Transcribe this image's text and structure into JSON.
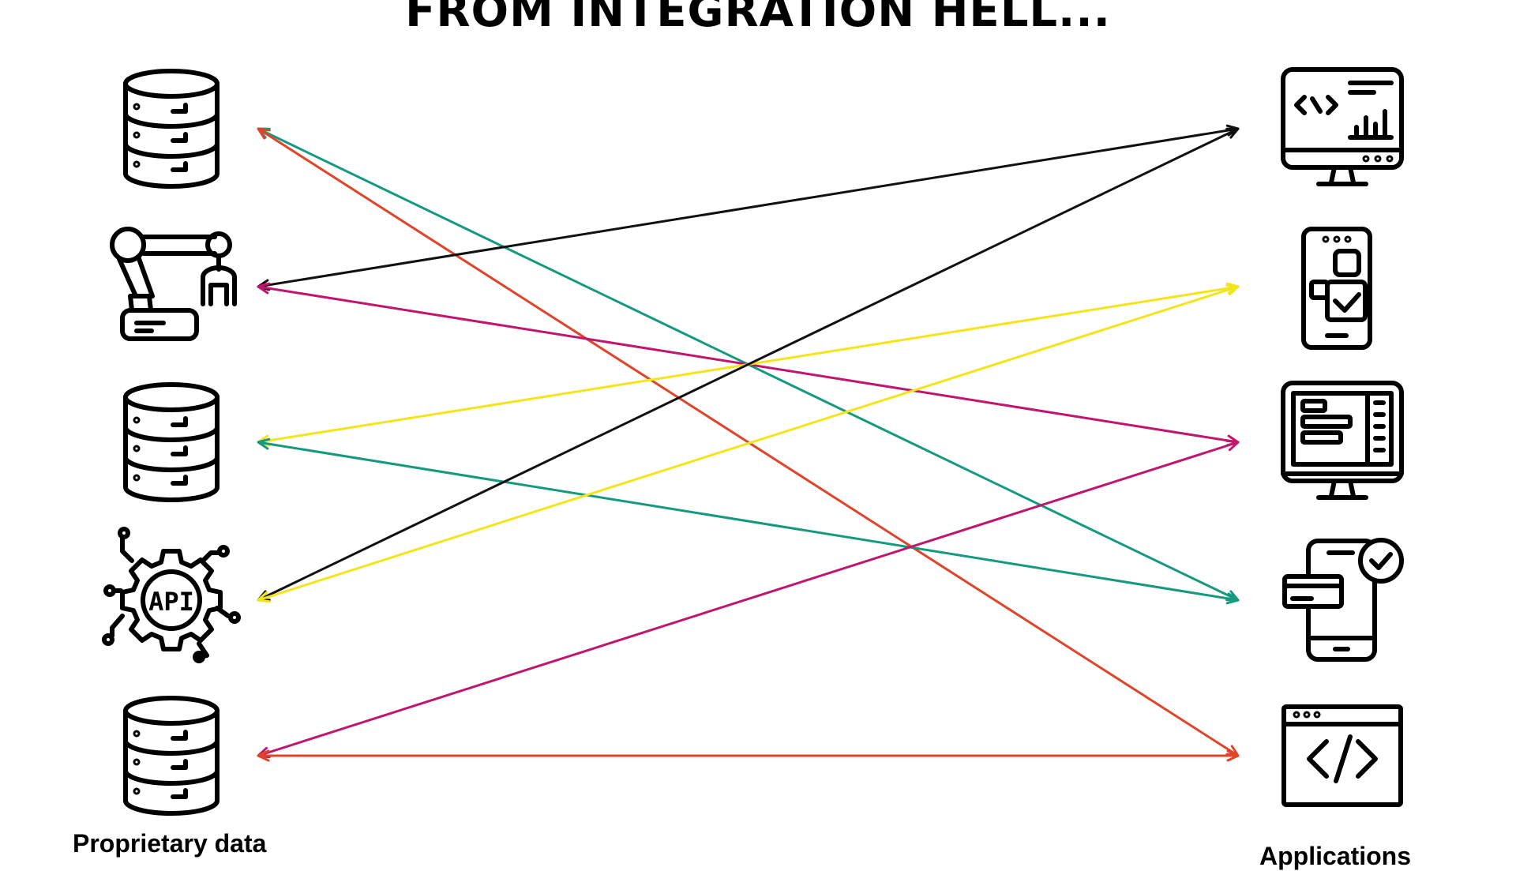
{
  "title": "FROM INTEGRATION HELL...",
  "left_label": "Proprietary data",
  "right_label": "Applications",
  "sources": [
    {
      "icon": "database-icon"
    },
    {
      "icon": "robot-arm-icon"
    },
    {
      "icon": "database-icon"
    },
    {
      "icon": "api-gear-icon",
      "text": "API"
    },
    {
      "icon": "database-icon"
    }
  ],
  "apps": [
    {
      "icon": "monitor-code-analytics-icon"
    },
    {
      "icon": "mobile-app-checklist-icon"
    },
    {
      "icon": "desktop-dashboard-icon"
    },
    {
      "icon": "mobile-payment-verified-icon"
    },
    {
      "icon": "browser-code-window-icon"
    }
  ],
  "colors": {
    "black": "#111111",
    "teal": "#159a80",
    "red": "#e0452b",
    "magenta": "#c0166e",
    "yellow": "#f4e51b"
  },
  "connections": [
    {
      "from": 0,
      "to": 3,
      "color": "teal"
    },
    {
      "from": 0,
      "to": 4,
      "color": "red"
    },
    {
      "from": 1,
      "to": 0,
      "color": "black"
    },
    {
      "from": 1,
      "to": 2,
      "color": "magenta"
    },
    {
      "from": 2,
      "to": 1,
      "color": "yellow"
    },
    {
      "from": 2,
      "to": 3,
      "color": "teal"
    },
    {
      "from": 3,
      "to": 0,
      "color": "black"
    },
    {
      "from": 3,
      "to": 1,
      "color": "yellow"
    },
    {
      "from": 4,
      "to": 2,
      "color": "magenta"
    },
    {
      "from": 4,
      "to": 4,
      "color": "red"
    }
  ]
}
